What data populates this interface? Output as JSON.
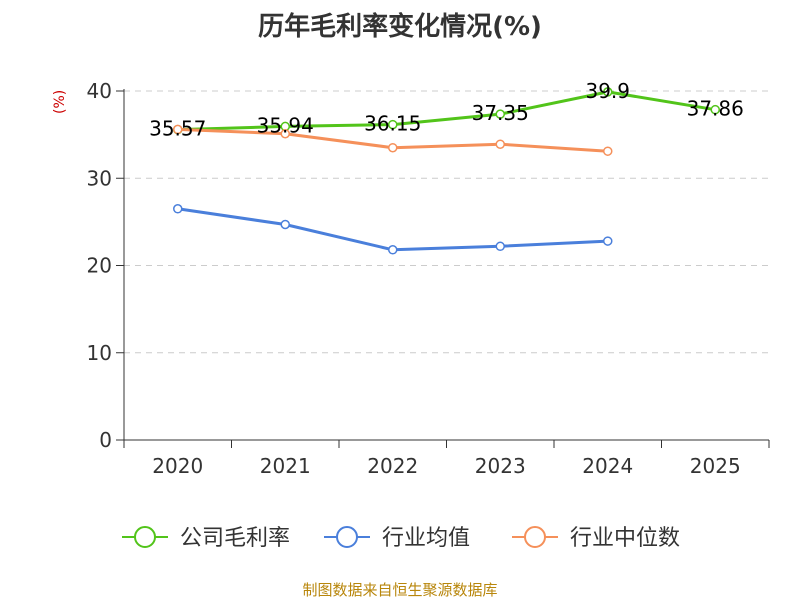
{
  "chart_data": {
    "type": "line",
    "title": "历年毛利率变化情况(%)",
    "ylabel": "(%)",
    "ylim": [
      0,
      40
    ],
    "yticks": [
      0,
      10,
      20,
      30,
      40
    ],
    "grid": true,
    "legend_position": "bottom",
    "categories": [
      "2020",
      "2021",
      "2022",
      "2023",
      "2024",
      "2025"
    ],
    "series": [
      {
        "name": "公司毛利率",
        "color": "#52c41a",
        "values": [
          35.57,
          35.94,
          36.15,
          37.35,
          39.9,
          37.86
        ],
        "labels": [
          "35.57",
          "35.94",
          "36.15",
          "37.35",
          "39.9",
          "37.86"
        ]
      },
      {
        "name": "行业均值",
        "color": "#4a7fdb",
        "values": [
          26.5,
          24.7,
          21.8,
          22.2,
          22.8,
          null
        ]
      },
      {
        "name": "行业中位数",
        "color": "#f5905a",
        "values": [
          35.6,
          35.1,
          33.5,
          33.9,
          33.1,
          null
        ]
      }
    ]
  },
  "source": "制图数据来自恒生聚源数据库"
}
